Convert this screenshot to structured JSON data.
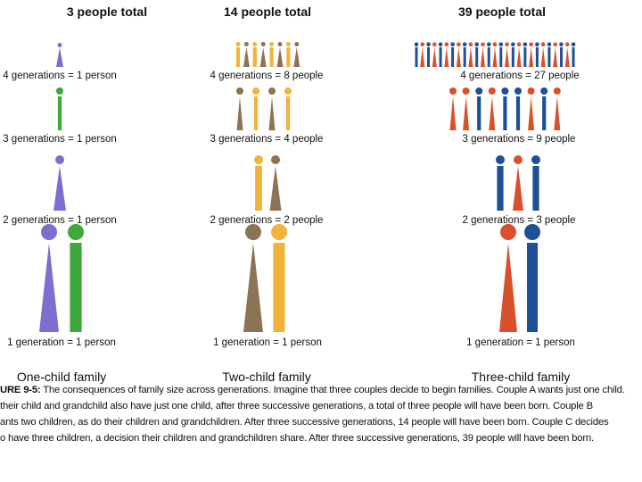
{
  "colors": {
    "purple": "#7b6fcf",
    "green": "#3fa83a",
    "gold": "#f2b33c",
    "brown": "#8c7355",
    "blue": "#1f4f96",
    "red": "#d9502c"
  },
  "columns": [
    {
      "title": "3 people total",
      "family": "One-child family",
      "rows": [
        {
          "label": "4 generations = 1 person",
          "people": [
            {
              "shape": "triangle",
              "color": "purple"
            }
          ]
        },
        {
          "label": "3 generations = 1 person",
          "people": [
            {
              "shape": "bar",
              "color": "green"
            }
          ]
        },
        {
          "label": "2 generations = 1 person",
          "people": [
            {
              "shape": "triangle",
              "color": "purple"
            }
          ]
        },
        {
          "label": "1 generation = 1 person",
          "people": [
            {
              "shape": "triangle",
              "color": "purple"
            },
            {
              "shape": "bar",
              "color": "green"
            }
          ]
        }
      ]
    },
    {
      "title": "14 people total",
      "family": "Two-child family",
      "rows": [
        {
          "label": "4 generations = 8 people",
          "people": [
            {
              "shape": "bar",
              "color": "gold"
            },
            {
              "shape": "triangle",
              "color": "brown"
            },
            {
              "shape": "bar",
              "color": "gold"
            },
            {
              "shape": "triangle",
              "color": "brown"
            },
            {
              "shape": "bar",
              "color": "gold"
            },
            {
              "shape": "triangle",
              "color": "brown"
            },
            {
              "shape": "bar",
              "color": "gold"
            },
            {
              "shape": "triangle",
              "color": "brown"
            }
          ]
        },
        {
          "label": "3 generations = 4 people",
          "people": [
            {
              "shape": "triangle",
              "color": "brown"
            },
            {
              "shape": "bar",
              "color": "gold"
            },
            {
              "shape": "triangle",
              "color": "brown"
            },
            {
              "shape": "bar",
              "color": "gold"
            }
          ]
        },
        {
          "label": "2 generations = 2 people",
          "people": [
            {
              "shape": "bar",
              "color": "gold"
            },
            {
              "shape": "triangle",
              "color": "brown"
            }
          ]
        },
        {
          "label": "1 generation = 1 person",
          "people": [
            {
              "shape": "triangle",
              "color": "brown"
            },
            {
              "shape": "bar",
              "color": "gold"
            }
          ]
        }
      ]
    },
    {
      "title": "39 people total",
      "family": "Three-child family",
      "rows": [
        {
          "label": "4 generations = 27 people",
          "people": [
            {
              "shape": "bar",
              "color": "blue"
            },
            {
              "shape": "triangle",
              "color": "red"
            },
            {
              "shape": "bar",
              "color": "blue"
            },
            {
              "shape": "triangle",
              "color": "red"
            },
            {
              "shape": "bar",
              "color": "blue"
            },
            {
              "shape": "triangle",
              "color": "red"
            },
            {
              "shape": "bar",
              "color": "blue"
            },
            {
              "shape": "triangle",
              "color": "red"
            },
            {
              "shape": "bar",
              "color": "blue"
            },
            {
              "shape": "triangle",
              "color": "red"
            },
            {
              "shape": "bar",
              "color": "blue"
            },
            {
              "shape": "triangle",
              "color": "red"
            },
            {
              "shape": "bar",
              "color": "blue"
            },
            {
              "shape": "triangle",
              "color": "red"
            },
            {
              "shape": "bar",
              "color": "blue"
            },
            {
              "shape": "triangle",
              "color": "red"
            },
            {
              "shape": "bar",
              "color": "blue"
            },
            {
              "shape": "triangle",
              "color": "red"
            },
            {
              "shape": "bar",
              "color": "blue"
            },
            {
              "shape": "triangle",
              "color": "red"
            },
            {
              "shape": "bar",
              "color": "blue"
            },
            {
              "shape": "triangle",
              "color": "red"
            },
            {
              "shape": "bar",
              "color": "blue"
            },
            {
              "shape": "triangle",
              "color": "red"
            },
            {
              "shape": "bar",
              "color": "blue"
            },
            {
              "shape": "triangle",
              "color": "red"
            },
            {
              "shape": "bar",
              "color": "blue"
            }
          ]
        },
        {
          "label": "3 generations = 9 people",
          "people": [
            {
              "shape": "triangle",
              "color": "red"
            },
            {
              "shape": "triangle",
              "color": "red"
            },
            {
              "shape": "bar",
              "color": "blue"
            },
            {
              "shape": "triangle",
              "color": "red"
            },
            {
              "shape": "bar",
              "color": "blue"
            },
            {
              "shape": "bar",
              "color": "blue"
            },
            {
              "shape": "triangle",
              "color": "red"
            },
            {
              "shape": "bar",
              "color": "blue"
            },
            {
              "shape": "triangle",
              "color": "red"
            }
          ]
        },
        {
          "label": "2 generations = 3 people",
          "people": [
            {
              "shape": "bar",
              "color": "blue"
            },
            {
              "shape": "triangle",
              "color": "red"
            },
            {
              "shape": "bar",
              "color": "blue"
            }
          ]
        },
        {
          "label": "1 generation = 1 person",
          "people": [
            {
              "shape": "triangle",
              "color": "red"
            },
            {
              "shape": "bar",
              "color": "blue"
            }
          ]
        }
      ]
    }
  ],
  "caption": {
    "figure": "URE 9-5:",
    "lines": [
      " The consequences of family size across generations. Imagine that three couples decide to begin families. Couple A wants just one child.",
      "their child and grandchild also have just one child, after three successive generations, a total of three people will have been born. Couple B",
      "ants two children, as do their children and grandchildren. After three successive generations, 14 people will have been born. Couple C decides",
      "o have three children, a decision their children and grandchildren share. After three successive generations, 39 people will have been born."
    ]
  }
}
